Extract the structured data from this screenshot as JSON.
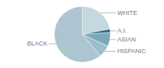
{
  "chart_data": {
    "type": "pie",
    "categories": [
      "WHITE",
      "A.I.",
      "ASIAN",
      "HISPANIC",
      "BLACK"
    ],
    "values": [
      22,
      2,
      8,
      7,
      61
    ],
    "colors": [
      "#c5d8e0",
      "#2e6e8e",
      "#7aaab8",
      "#9abfcc",
      "#adc5d0"
    ]
  }
}
